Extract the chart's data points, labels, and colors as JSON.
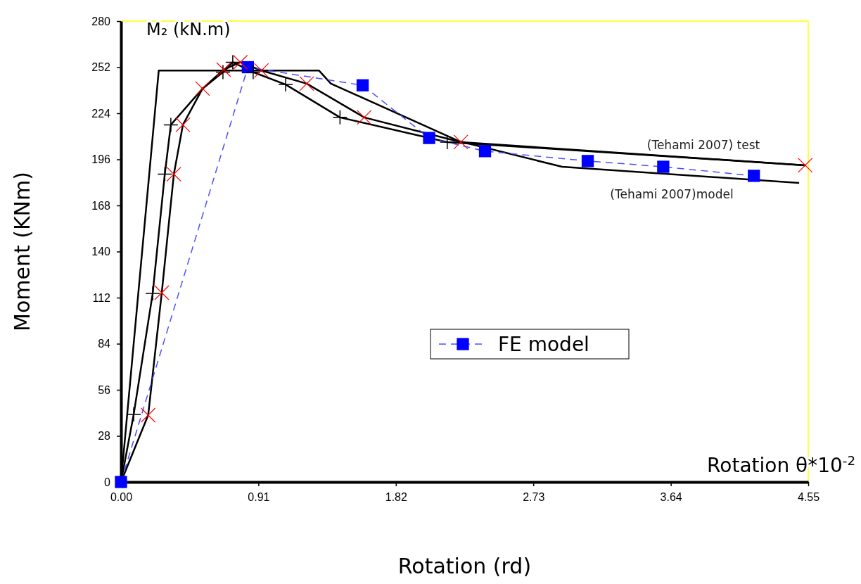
{
  "chart_data": {
    "type": "line",
    "xlabel": "Rotation  (rd)",
    "ylabel": "Moment  (KNm)",
    "annotations": [
      "M₂ (kN.m)",
      "Rotation  θ*10$^{-2}$",
      "(Tehami 2007) test",
      "(Tehami 2007)model"
    ],
    "xlim": [
      0,
      4.55
    ],
    "ylim": [
      0,
      280
    ],
    "xticks": [
      {
        "value": 0,
        "label": "0.00"
      },
      0.91,
      1.82,
      2.73,
      3.64,
      4.55
    ],
    "yticks": [
      0,
      28,
      56,
      84,
      112,
      140,
      168,
      196,
      224,
      252,
      280
    ],
    "grid": false,
    "legend": "bottom",
    "series": [
      {
        "color": "#000000",
        "x": [
          0,
          0.25,
          1.31,
          1.39,
          2.24,
          2.92,
          4.49
        ],
        "values": [
          0,
          250,
          250,
          242,
          207,
          191.5,
          181.7
        ]
      },
      {
        "color": "#000000",
        "x": [
          0,
          0.084,
          0.21,
          0.29,
          0.33,
          0.54,
          0.675,
          0.74,
          0.875,
          1.09,
          1.45,
          2.16,
          4.53
        ],
        "values": [
          0,
          41,
          114.6,
          187,
          217,
          239,
          249,
          255,
          249,
          241.5,
          221.5,
          206.5,
          192.4
        ]
      },
      {
        "color": "#000000",
        "x": [
          0,
          0.18,
          0.27,
          0.35,
          0.41,
          0.54,
          0.68,
          0.79,
          0.93,
          1.23,
          1.61,
          2.25,
          4.53
        ],
        "values": [
          0,
          40.6,
          115,
          187,
          217,
          239,
          250.5,
          255,
          250,
          242,
          221.5,
          206.5,
          192.4
        ]
      },
      {
        "type": "scatter",
        "marker": "cross",
        "color": "#000000",
        "x": [
          0.084,
          0.21,
          0.29,
          0.33,
          0.675,
          0.74,
          0.875,
          1.09,
          1.45,
          2.16
        ],
        "values": [
          41,
          114.6,
          187,
          217,
          249,
          255,
          249,
          241.5,
          221.5,
          206.5
        ]
      },
      {
        "type": "scatter",
        "marker": "cross",
        "color": "#ff0000",
        "x": [
          0.18,
          0.27,
          0.35,
          0.41,
          0.54,
          0.68,
          0.79,
          0.93,
          1.23,
          1.61,
          2.25,
          4.53
        ],
        "values": [
          40.6,
          115,
          187,
          217,
          239,
          250.5,
          255,
          250,
          242,
          221.5,
          206.5,
          192.4
        ]
      },
      {
        "name": "FE model",
        "color": "#0000ff",
        "marker": "square",
        "line_style": "dashed",
        "x": [
          0,
          0.84,
          1.6,
          2.04,
          2.41,
          3.09,
          3.59,
          4.19
        ],
        "values": [
          0,
          252,
          241,
          209,
          201,
          195,
          191.5,
          186
        ]
      }
    ]
  }
}
